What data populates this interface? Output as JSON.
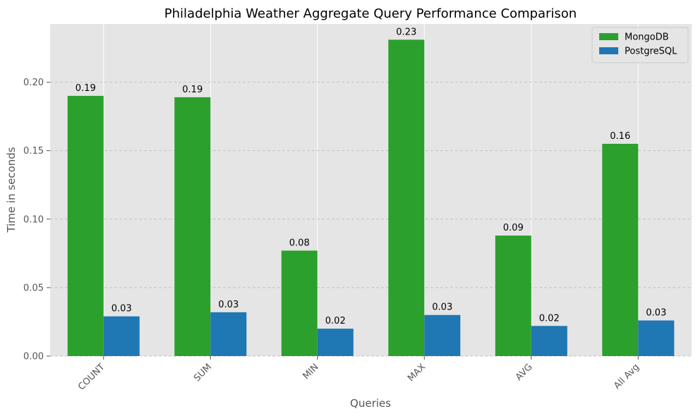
{
  "chart_data": {
    "type": "bar",
    "title": "Philadelphia Weather Aggregate Query Performance Comparison",
    "xlabel": "Queries",
    "ylabel": "Time in seconds",
    "categories": [
      "COUNT",
      "SUM",
      "MIN",
      "MAX",
      "AVG",
      "All Avg"
    ],
    "series": [
      {
        "name": "MongoDB",
        "color": "#2ca02c",
        "values": [
          0.19,
          0.189,
          0.077,
          0.231,
          0.088,
          0.155
        ],
        "labels": [
          "0.19",
          "0.19",
          "0.08",
          "0.23",
          "0.09",
          "0.16"
        ]
      },
      {
        "name": "PostgreSQL",
        "color": "#1f77b4",
        "values": [
          0.029,
          0.032,
          0.02,
          0.03,
          0.022,
          0.026
        ],
        "labels": [
          "0.03",
          "0.03",
          "0.02",
          "0.03",
          "0.02",
          "0.03"
        ]
      }
    ],
    "ylim": [
      0,
      0.2425
    ],
    "yticks": [
      0.0,
      0.05,
      0.1,
      0.15,
      0.2
    ],
    "ytick_labels": [
      "0.00",
      "0.05",
      "0.10",
      "0.15",
      "0.20"
    ],
    "x_tick_rotation": 45,
    "grid": {
      "x": "solid white",
      "y": "dashed"
    },
    "legend_position": "top-right",
    "plot_background": "#e5e5e5"
  }
}
